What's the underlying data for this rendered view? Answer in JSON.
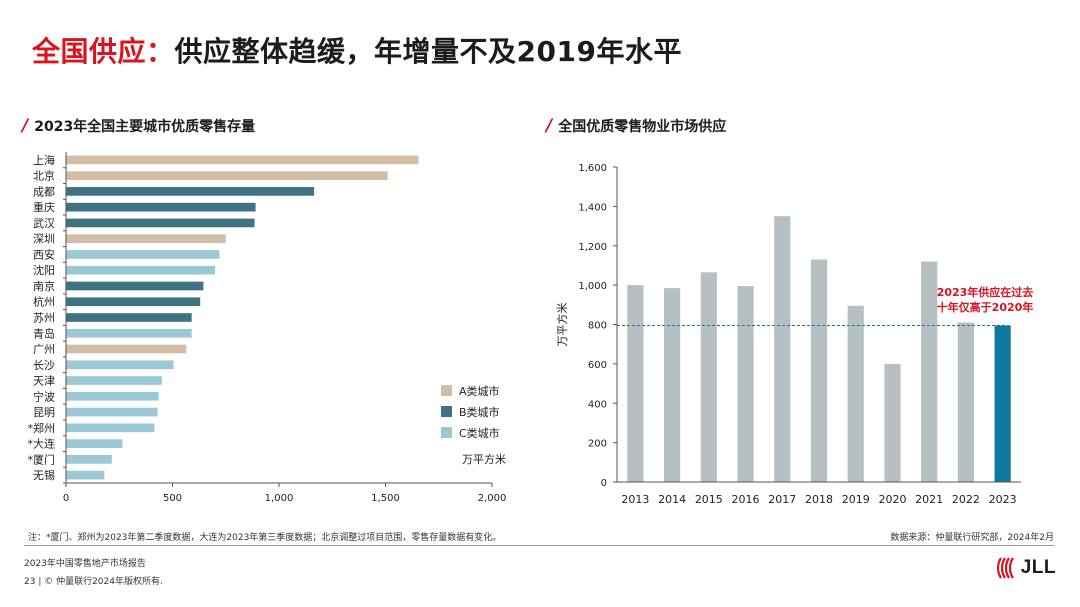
{
  "header": {
    "title_accent": "全国供应：",
    "title_rest": "供应整体趋缓，年增量不及2019年水平"
  },
  "left_chart_title": "2023年全国主要城市优质零售存量",
  "right_chart_title": "全国优质零售物业市场供应",
  "chart_data": [
    {
      "type": "bar",
      "orientation": "horizontal",
      "title": "2023年全国主要城市优质零售存量",
      "categories": [
        "上海",
        "北京",
        "成都",
        "重庆",
        "武汉",
        "深圳",
        "西安",
        "沈阳",
        "南京",
        "杭州",
        "苏州",
        "青岛",
        "广州",
        "长沙",
        "天津",
        "宁波",
        "昆明",
        "*郑州",
        "*大连",
        "*厦门",
        "无锡"
      ],
      "values": [
        1655,
        1510,
        1165,
        890,
        885,
        750,
        720,
        700,
        645,
        630,
        590,
        590,
        565,
        505,
        450,
        435,
        430,
        415,
        265,
        215,
        180
      ],
      "tiers": [
        "A",
        "A",
        "B",
        "B",
        "B",
        "A",
        "C",
        "C",
        "B",
        "B",
        "B",
        "C",
        "A",
        "C",
        "C",
        "C",
        "C",
        "C",
        "C",
        "C",
        "C"
      ],
      "legend": [
        {
          "key": "A",
          "label": "A类城市",
          "color": "#d4bda6"
        },
        {
          "key": "B",
          "label": "B类城市",
          "color": "#3f7283"
        },
        {
          "key": "C",
          "label": "C类城市",
          "color": "#9ac8d5"
        }
      ],
      "unit_label": "万平方米",
      "xlim": [
        0,
        2000
      ],
      "xticks": [
        0,
        500,
        1000,
        1500,
        2000
      ],
      "xtick_labels": [
        "0",
        "500",
        "1,000",
        "1,500",
        "2,000"
      ],
      "grid": false,
      "legend_position": "bottom-right"
    },
    {
      "type": "bar",
      "title": "全国优质零售物业市场供应",
      "categories": [
        "2013",
        "2014",
        "2015",
        "2016",
        "2017",
        "2018",
        "2019",
        "2020",
        "2021",
        "2022",
        "2023"
      ],
      "values": [
        1000,
        985,
        1065,
        995,
        1350,
        1130,
        895,
        600,
        1120,
        810,
        795
      ],
      "colors": [
        "#b6bfc1",
        "#b6bfc1",
        "#b6bfc1",
        "#b6bfc1",
        "#b6bfc1",
        "#b6bfc1",
        "#b6bfc1",
        "#b6bfc1",
        "#b6bfc1",
        "#b6bfc1",
        "#0f789e"
      ],
      "ylabel": "万平方米",
      "ylim": [
        0,
        1600
      ],
      "yticks": [
        0,
        200,
        400,
        600,
        800,
        1000,
        1200,
        1400,
        1600
      ],
      "ytick_labels": [
        "0",
        "200",
        "400",
        "600",
        "800",
        "1,000",
        "1,200",
        "1,400",
        "1,600"
      ],
      "reference_line": 795,
      "annotation": [
        "2023年供应在过去",
        "十年仅高于2020年"
      ],
      "annotation_color": "#d7141f",
      "grid": false
    }
  ],
  "footer": {
    "note": "注：*厦门、郑州为2023年第二季度数据，大连为2023年第三季度数据；北京调整过项目范围，零售存量数据有变化。",
    "source": "数据来源：仲量联行研究部，2024年2月",
    "report": "2023年中国零售地产市场报告",
    "copyright": "23 | © 仲量联行2024年版权所有.",
    "logo_text": "JLL"
  },
  "colors": {
    "accent_red": "#d7141f",
    "tier_a": "#d4bda6",
    "tier_b": "#3f7283",
    "tier_c": "#9ac8d5",
    "bar_grey": "#b6bfc1",
    "bar_highlight": "#0f789e"
  }
}
